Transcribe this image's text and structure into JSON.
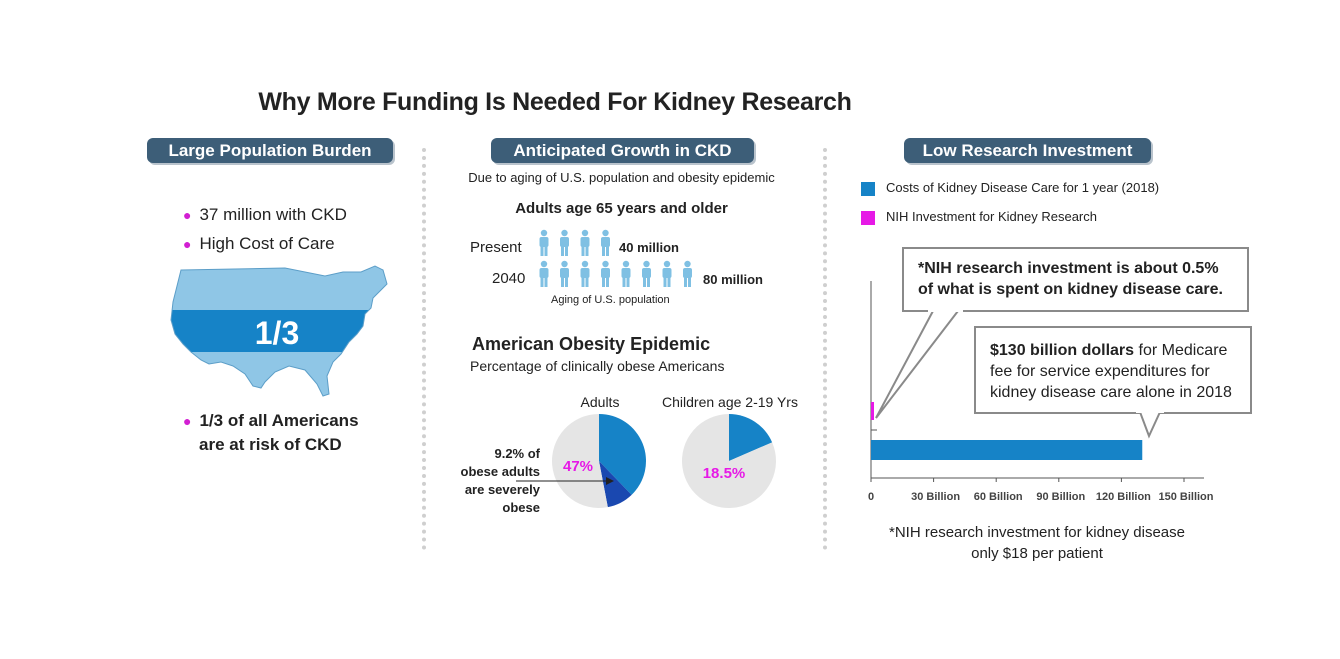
{
  "title": "Why More Funding Is Needed For Kidney  Research",
  "left": {
    "heading": "Large Population Burden",
    "bullets": [
      "37 million with CKD",
      "High Cost of Care"
    ],
    "map_label": "1/3",
    "risk_line1": "1/3 of all Americans",
    "risk_line2": "are at risk of CKD"
  },
  "middle": {
    "heading": "Anticipated Growth in CKD",
    "subtitle": "Due to aging of U.S. population and obesity epidemic",
    "adults_title": "Adults age 65 years and older",
    "rows": [
      {
        "label": "Present",
        "count": 4,
        "value": "40 million"
      },
      {
        "label": "2040",
        "count": 8,
        "value": "80 million"
      }
    ],
    "aging_caption": "Aging of U.S. population",
    "obesity_title": "American Obesity Epidemic",
    "obesity_subtitle": "Percentage of clinically obese Americans",
    "annotation": [
      "9.2% of",
      "obese adults",
      "are severely",
      "obese"
    ]
  },
  "right": {
    "heading": "Low Research Investment",
    "legend": [
      {
        "label": "Costs of Kidney Disease Care for 1 year (2018)",
        "color": "#1683c7"
      },
      {
        "label": "NIH Investment for Kidney Research",
        "color": "#e619e6"
      }
    ],
    "callout1_line1": "*NIH research investment is about 0.5%",
    "callout1_line2": "of what is spent on kidney disease care.",
    "callout2_bold": "$130 billion dollars",
    "callout2_rest1": " for Medicare",
    "callout2_line2": "fee for service expenditures for",
    "callout2_line3": "kidney disease care alone in 2018",
    "footnote1": "*NIH research investment for kidney disease",
    "footnote2": "only $18 per patient"
  },
  "chart_data": [
    {
      "type": "pie",
      "title": "Adults",
      "slices": [
        {
          "value": 37.8,
          "color": "#1683c7"
        },
        {
          "value": 9.2,
          "color": "#1a48b0"
        },
        {
          "value": 53.0,
          "color": "#e5e5e5"
        }
      ],
      "label": "47%",
      "label_color": "#e619e6"
    },
    {
      "type": "pie",
      "title": "Children age 2-19 Yrs",
      "slices": [
        {
          "value": 18.5,
          "color": "#1683c7"
        },
        {
          "value": 81.5,
          "color": "#e5e5e5"
        }
      ],
      "label": "18.5%",
      "label_color": "#e619e6"
    },
    {
      "type": "bar",
      "orientation": "horizontal",
      "series": [
        {
          "name": "NIH Investment for Kidney Research",
          "value": 0.6,
          "color": "#e619e6"
        },
        {
          "name": "Costs of Kidney Disease Care for 1 year (2018)",
          "value": 130,
          "color": "#1683c7"
        }
      ],
      "xlim": [
        0,
        150
      ],
      "xticks": [
        "0",
        "30 Billion",
        "60 Billion",
        "90 Billion",
        "120 Billion",
        "150 Billion"
      ]
    }
  ]
}
